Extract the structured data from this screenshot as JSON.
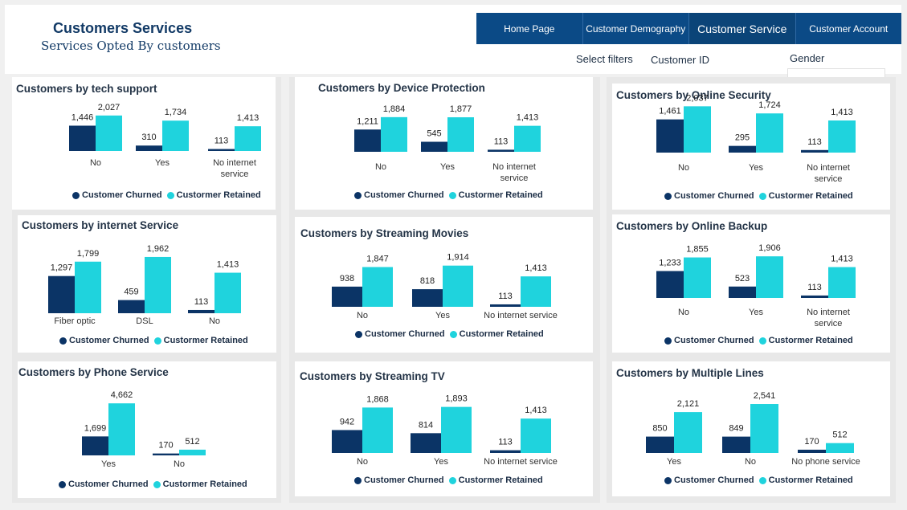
{
  "header": {
    "title": "Customers Services",
    "subtitle": "Services Opted By customers"
  },
  "nav": [
    {
      "label": "Home Page",
      "active": false
    },
    {
      "label": "Customer Demography",
      "active": false
    },
    {
      "label": "Customer Service",
      "active": true
    },
    {
      "label": "Customer Account",
      "active": false
    }
  ],
  "filters": {
    "label": "Select filters",
    "customer_id": "Customer ID",
    "gender": "Gender"
  },
  "colors": {
    "churned": "#0b3466",
    "retained": "#1fd3dd"
  },
  "legend": {
    "churned": "Customer Churned",
    "retained": "Custormer Retained"
  },
  "charts": [
    {
      "title": "Customers by tech support",
      "categories": [
        "No",
        "Yes",
        "No internet\nservice"
      ],
      "churned": [
        1446,
        310,
        113
      ],
      "retained": [
        2027,
        1734,
        1413
      ],
      "labels_churned": [
        "1,446",
        "310",
        "113"
      ],
      "labels_retained": [
        "2,027",
        "1,734",
        "1,413"
      ]
    },
    {
      "title": "Customers by internet Service",
      "categories": [
        "Fiber optic",
        "DSL",
        "No"
      ],
      "churned": [
        1297,
        459,
        113
      ],
      "retained": [
        1799,
        1962,
        1413
      ],
      "labels_churned": [
        "1,297",
        "459",
        "113"
      ],
      "labels_retained": [
        "1,799",
        "1,962",
        "1,413"
      ]
    },
    {
      "title": "Customers by Phone Service",
      "categories": [
        "Yes",
        "No"
      ],
      "churned": [
        1699,
        170
      ],
      "retained": [
        4662,
        512
      ],
      "labels_churned": [
        "1,699",
        "170"
      ],
      "labels_retained": [
        "4,662",
        "512"
      ]
    },
    {
      "title": "Customers by Device Protection",
      "categories": [
        "No",
        "Yes",
        "No internet\nservice"
      ],
      "churned": [
        1211,
        545,
        113
      ],
      "retained": [
        1884,
        1877,
        1413
      ],
      "labels_churned": [
        "1,211",
        "545",
        "113"
      ],
      "labels_retained": [
        "1,884",
        "1,877",
        "1,413"
      ]
    },
    {
      "title": "Customers by Streaming Movies",
      "categories": [
        "No",
        "Yes",
        "No internet service"
      ],
      "churned": [
        938,
        818,
        113
      ],
      "retained": [
        1847,
        1914,
        1413
      ],
      "labels_churned": [
        "938",
        "818",
        "113"
      ],
      "labels_retained": [
        "1,847",
        "1,914",
        "1,413"
      ]
    },
    {
      "title": "Customers by Streaming TV",
      "categories": [
        "No",
        "Yes",
        "No internet service"
      ],
      "churned": [
        942,
        814,
        113
      ],
      "retained": [
        1868,
        1893,
        1413
      ],
      "labels_churned": [
        "942",
        "814",
        "113"
      ],
      "labels_retained": [
        "1,868",
        "1,893",
        "1,413"
      ]
    },
    {
      "title": "Customers by Online Security",
      "categories": [
        "No",
        "Yes",
        "No internet\nservice"
      ],
      "churned": [
        1461,
        295,
        113
      ],
      "retained": [
        2037,
        1724,
        1413
      ],
      "labels_churned": [
        "1,461",
        "295",
        "113"
      ],
      "labels_retained": [
        "2,037",
        "1,724",
        "1,413"
      ]
    },
    {
      "title": "Customers by Online Backup",
      "categories": [
        "No",
        "Yes",
        "No internet\nservice"
      ],
      "churned": [
        1233,
        523,
        113
      ],
      "retained": [
        1855,
        1906,
        1413
      ],
      "labels_churned": [
        "1,233",
        "523",
        "113"
      ],
      "labels_retained": [
        "1,855",
        "1,906",
        "1,413"
      ]
    },
    {
      "title": "Customers by Multiple Lines",
      "categories": [
        "Yes",
        "No",
        "No phone service"
      ],
      "churned": [
        850,
        849,
        170
      ],
      "retained": [
        2121,
        2541,
        512
      ],
      "labels_churned": [
        "850",
        "849",
        "170"
      ],
      "labels_retained": [
        "2,121",
        "2,541",
        "512"
      ]
    }
  ],
  "chart_data": [
    {
      "type": "bar",
      "title": "Customers by tech support",
      "categories": [
        "No",
        "Yes",
        "No internet service"
      ],
      "series": [
        {
          "name": "Customer Churned",
          "values": [
            1446,
            310,
            113
          ]
        },
        {
          "name": "Custormer Retained",
          "values": [
            2027,
            1734,
            1413
          ]
        }
      ],
      "legend": "bottom"
    },
    {
      "type": "bar",
      "title": "Customers by internet Service",
      "categories": [
        "Fiber optic",
        "DSL",
        "No"
      ],
      "series": [
        {
          "name": "Customer Churned",
          "values": [
            1297,
            459,
            113
          ]
        },
        {
          "name": "Custormer Retained",
          "values": [
            1799,
            1962,
            1413
          ]
        }
      ],
      "legend": "bottom"
    },
    {
      "type": "bar",
      "title": "Customers by Phone Service",
      "categories": [
        "Yes",
        "No"
      ],
      "series": [
        {
          "name": "Customer Churned",
          "values": [
            1699,
            170
          ]
        },
        {
          "name": "Custormer Retained",
          "values": [
            4662,
            512
          ]
        }
      ],
      "legend": "bottom"
    },
    {
      "type": "bar",
      "title": "Customers by Device Protection",
      "categories": [
        "No",
        "Yes",
        "No internet service"
      ],
      "series": [
        {
          "name": "Customer Churned",
          "values": [
            1211,
            545,
            113
          ]
        },
        {
          "name": "Custormer Retained",
          "values": [
            1884,
            1877,
            1413
          ]
        }
      ],
      "legend": "bottom"
    },
    {
      "type": "bar",
      "title": "Customers by Streaming Movies",
      "categories": [
        "No",
        "Yes",
        "No internet service"
      ],
      "series": [
        {
          "name": "Customer Churned",
          "values": [
            938,
            818,
            113
          ]
        },
        {
          "name": "Custormer Retained",
          "values": [
            1847,
            1914,
            1413
          ]
        }
      ],
      "legend": "bottom"
    },
    {
      "type": "bar",
      "title": "Customers by Streaming TV",
      "categories": [
        "No",
        "Yes",
        "No internet service"
      ],
      "series": [
        {
          "name": "Customer Churned",
          "values": [
            942,
            814,
            113
          ]
        },
        {
          "name": "Custormer Retained",
          "values": [
            1868,
            1893,
            1413
          ]
        }
      ],
      "legend": "bottom"
    },
    {
      "type": "bar",
      "title": "Customers by Online Security",
      "categories": [
        "No",
        "Yes",
        "No internet service"
      ],
      "series": [
        {
          "name": "Customer Churned",
          "values": [
            1461,
            295,
            113
          ]
        },
        {
          "name": "Custormer Retained",
          "values": [
            2037,
            1724,
            1413
          ]
        }
      ],
      "legend": "bottom"
    },
    {
      "type": "bar",
      "title": "Customers by Online Backup",
      "categories": [
        "No",
        "Yes",
        "No internet service"
      ],
      "series": [
        {
          "name": "Customer Churned",
          "values": [
            1233,
            523,
            113
          ]
        },
        {
          "name": "Custormer Retained",
          "values": [
            1855,
            1906,
            1413
          ]
        }
      ],
      "legend": "bottom"
    },
    {
      "type": "bar",
      "title": "Customers by Multiple Lines",
      "categories": [
        "Yes",
        "No",
        "No phone service"
      ],
      "series": [
        {
          "name": "Customer Churned",
          "values": [
            850,
            849,
            170
          ]
        },
        {
          "name": "Custormer Retained",
          "values": [
            2121,
            2541,
            512
          ]
        }
      ],
      "legend": "bottom"
    }
  ]
}
